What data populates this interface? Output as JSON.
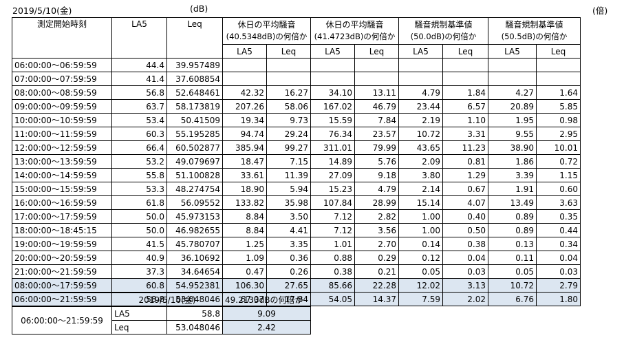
{
  "header": {
    "date_label": "2019/5/10(金)",
    "unit_db": "(dB)",
    "unit_times": "(倍)"
  },
  "main_table": {
    "col_time": "測定開始時刻",
    "col_la5": "LA5",
    "col_leq": "Leq",
    "groups": [
      {
        "title": "休日の平均騒音",
        "subtitle": "(40.5348dB)の何倍か",
        "sub_la5": "LA5",
        "sub_leq": "Leq"
      },
      {
        "title": "休日の平均騒音",
        "subtitle": "(41.4723dB)の何倍か",
        "sub_la5": "LA5",
        "sub_leq": "Leq"
      },
      {
        "title": "騒音規制基準値",
        "subtitle": "(50.0dB)の何倍か",
        "sub_la5": "LA5",
        "sub_leq": "Leq"
      },
      {
        "title": "騒音規制基準値",
        "subtitle": "(50.5dB)の何倍か",
        "sub_la5": "LA5",
        "sub_leq": "Leq"
      }
    ],
    "rows": [
      {
        "time": "06:00:00～06:59:59",
        "la5": "44.4",
        "leq": "39.957489",
        "v": [
          "",
          "",
          "",
          "",
          "",
          "",
          "",
          ""
        ]
      },
      {
        "time": "07:00:00～07:59:59",
        "la5": "41.4",
        "leq": "37.608854",
        "v": [
          "",
          "",
          "",
          "",
          "",
          "",
          "",
          ""
        ]
      },
      {
        "time": "08:00:00～08:59:59",
        "la5": "56.8",
        "leq": "52.648461",
        "v": [
          "42.32",
          "16.27",
          "34.10",
          "13.11",
          "4.79",
          "1.84",
          "4.27",
          "1.64"
        ]
      },
      {
        "time": "09:00:00～09:59:59",
        "la5": "63.7",
        "leq": "58.173819",
        "v": [
          "207.26",
          "58.06",
          "167.02",
          "46.79",
          "23.44",
          "6.57",
          "20.89",
          "5.85"
        ]
      },
      {
        "time": "10:00:00～10:59:59",
        "la5": "53.4",
        "leq": "50.41509",
        "v": [
          "19.34",
          "9.73",
          "15.59",
          "7.84",
          "2.19",
          "1.10",
          "1.95",
          "0.98"
        ]
      },
      {
        "time": "11:00:00～11:59:59",
        "la5": "60.3",
        "leq": "55.195285",
        "v": [
          "94.74",
          "29.24",
          "76.34",
          "23.57",
          "10.72",
          "3.31",
          "9.55",
          "2.95"
        ]
      },
      {
        "time": "12:00:00～12:59:59",
        "la5": "66.4",
        "leq": "60.502877",
        "v": [
          "385.94",
          "99.27",
          "311.01",
          "79.99",
          "43.65",
          "11.23",
          "38.90",
          "10.01"
        ]
      },
      {
        "time": "13:00:00～13:59:59",
        "la5": "53.2",
        "leq": "49.079697",
        "v": [
          "18.47",
          "7.15",
          "14.89",
          "5.76",
          "2.09",
          "0.81",
          "1.86",
          "0.72"
        ]
      },
      {
        "time": "14:00:00～14:59:59",
        "la5": "55.8",
        "leq": "51.100828",
        "v": [
          "33.61",
          "11.39",
          "27.09",
          "9.18",
          "3.80",
          "1.29",
          "3.39",
          "1.15"
        ]
      },
      {
        "time": "15:00:00～15:59:59",
        "la5": "53.3",
        "leq": "48.274754",
        "v": [
          "18.90",
          "5.94",
          "15.23",
          "4.79",
          "2.14",
          "0.67",
          "1.91",
          "0.60"
        ]
      },
      {
        "time": "16:00:00～16:59:59",
        "la5": "61.8",
        "leq": "56.09552",
        "v": [
          "133.82",
          "35.98",
          "107.84",
          "28.99",
          "15.14",
          "4.07",
          "13.49",
          "3.63"
        ]
      },
      {
        "time": "17:00:00～17:59:59",
        "la5": "50.0",
        "leq": "45.973153",
        "v": [
          "8.84",
          "3.50",
          "7.12",
          "2.82",
          "1.00",
          "0.40",
          "0.89",
          "0.35"
        ]
      },
      {
        "time": "18:00:00～18:45:15",
        "la5": "50.0",
        "leq": "46.982655",
        "v": [
          "8.84",
          "4.41",
          "7.12",
          "3.56",
          "1.00",
          "0.50",
          "0.89",
          "0.44"
        ]
      },
      {
        "time": "19:00:00～19:59:59",
        "la5": "41.5",
        "leq": "45.780707",
        "v": [
          "1.25",
          "3.35",
          "1.01",
          "2.70",
          "0.14",
          "0.38",
          "0.13",
          "0.34"
        ]
      },
      {
        "time": "20:00:00～20:59:59",
        "la5": "40.9",
        "leq": "36.10692",
        "v": [
          "1.09",
          "0.36",
          "0.88",
          "0.29",
          "0.12",
          "0.04",
          "0.11",
          "0.04"
        ]
      },
      {
        "time": "21:00:00～21:59:59",
        "la5": "37.3",
        "leq": "34.64654",
        "v": [
          "0.47",
          "0.26",
          "0.38",
          "0.21",
          "0.05",
          "0.03",
          "0.05",
          "0.03"
        ]
      }
    ],
    "summary_rows": [
      {
        "time": "08:00:00～17:59:59",
        "la5": "60.8",
        "leq": "54.952381",
        "v": [
          "106.30",
          "27.65",
          "85.66",
          "22.28",
          "12.02",
          "3.13",
          "10.72",
          "2.79"
        ]
      },
      {
        "time": "06:00:00～21:59:59",
        "la5": "58.8",
        "leq": "53.048046",
        "v": [
          "67.07",
          "17.84",
          "54.05",
          "14.37",
          "7.59",
          "2.02",
          "6.76",
          "1.80"
        ]
      }
    ]
  },
  "small_table": {
    "date_label": "2019/5/10(金)",
    "compare_header": "49.2133dBの何倍か",
    "time_range": "06:00:00～21:59:59",
    "rows": [
      {
        "label": "LA5",
        "value": "58.8",
        "ratio": "9.09"
      },
      {
        "label": "Leq",
        "value": "53.048046",
        "ratio": "2.42"
      }
    ]
  },
  "colors": {
    "highlight": "#dce6f1",
    "border": "#000000"
  }
}
